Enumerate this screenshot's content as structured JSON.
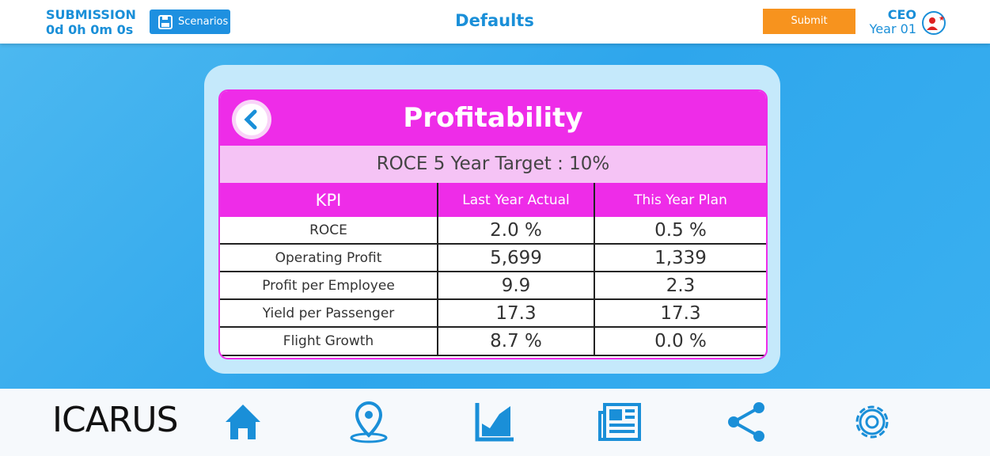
{
  "header": {
    "submission_label": "SUBMISSION",
    "timer": "0d 0h 0m 0s",
    "scenarios_button": "Scenarios",
    "title": "Defaults",
    "submit_button": "Submit",
    "role": "CEO",
    "year": "Year 01"
  },
  "panel": {
    "title": "Profitability",
    "target": "ROCE 5 Year Target : 10%",
    "table": {
      "columns": [
        "KPI",
        "Last Year Actual",
        "This Year Plan"
      ],
      "rows": [
        [
          "ROCE",
          "2.0 %",
          "0.5 %"
        ],
        [
          "Operating Profit",
          "5,699",
          "1,339"
        ],
        [
          "Profit per Employee",
          "9.9",
          "2.3"
        ],
        [
          "Yield per Passenger",
          "17.3",
          "17.3"
        ],
        [
          "Flight Growth",
          "8.7 %",
          "0.0 %"
        ]
      ]
    }
  },
  "footer": {
    "logo": "ICARUS"
  }
}
